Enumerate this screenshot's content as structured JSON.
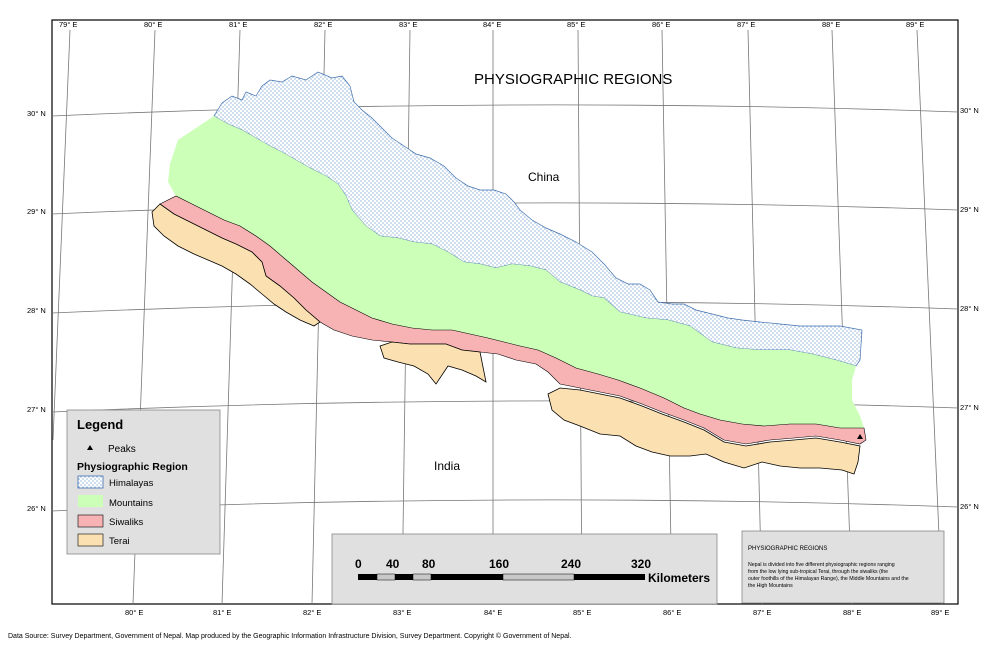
{
  "map": {
    "title": "PHYSIOGRAPHIC REGIONS",
    "labels": {
      "china": "China",
      "india": "India"
    },
    "longitude_labels": [
      "79° E",
      "80° E",
      "81° E",
      "82° E",
      "83° E",
      "84° E",
      "85° E",
      "86° E",
      "87° E",
      "88° E",
      "89° E"
    ],
    "latitude_labels": [
      "30° N",
      "29° N",
      "28° N",
      "27° N",
      "26° N"
    ],
    "colors": {
      "himalayas": "#ffffff",
      "himalayas_dots": "#5b8fc8",
      "mountains": "#ccffb8",
      "siwaliks": "#f7b3b3",
      "terai": "#fbe1b2",
      "panel": "#e0e0e0"
    }
  },
  "legend": {
    "title": "Legend",
    "peaks_label": "Peaks",
    "region_heading": "Physiographic Region",
    "items": [
      "Himalayas",
      "Mountains",
      "Siwaliks",
      "Terai"
    ]
  },
  "scale_bar": {
    "ticks": [
      "0",
      "40",
      "80",
      "160",
      "240",
      "320"
    ],
    "unit": "Kilometers"
  },
  "info_box": {
    "title": "PHYSIOGRAPHIC REGIONS",
    "lines": [
      "Nepal is divided into five different physiographic regions ranging",
      "from the low lying sub-tropical Terai, through the siwaliks (the",
      "outer foothills of the Himalayan Range), the Middle Mountains and the",
      "the High Mountains"
    ]
  },
  "footer": "Data Source: Survey Department, Government of Nepal. Map produced by the Geographic Information Infrastructure Division, Survey Department. Copyright © Government of Nepal."
}
